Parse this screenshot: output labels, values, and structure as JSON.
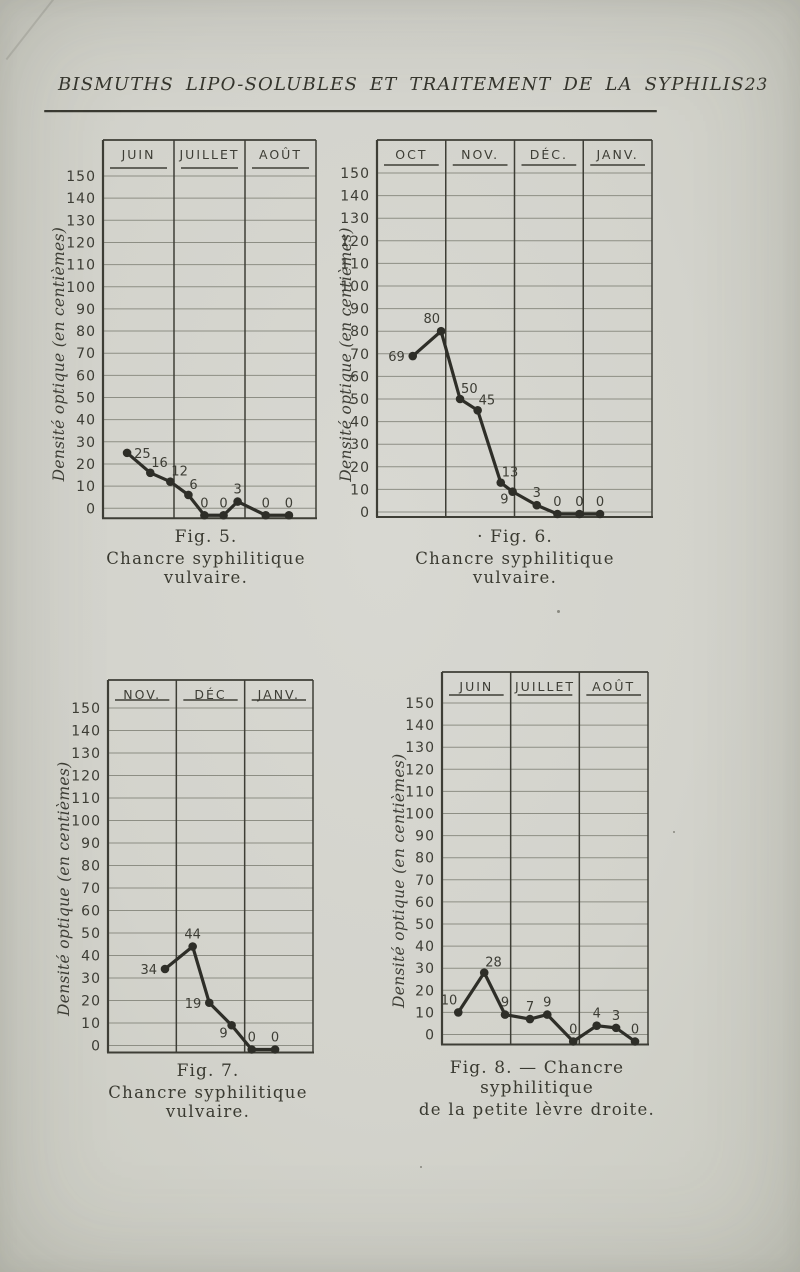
{
  "page_header": {
    "title": "BISMUTHS LIPO-SOLUBLES ET TRAITEMENT DE LA SYPHILIS",
    "page_number": "23"
  },
  "chart_data": [
    {
      "id": "fig-5",
      "type": "line",
      "figure_label": "Fig. 5.",
      "caption_lines": [
        "Fig. 5.",
        "Chancre syphilitique vulvaire."
      ],
      "ylabel": "Densité optique (en centièmes)",
      "categories": [
        "JUIN",
        "JUILLET",
        "AOÛT"
      ],
      "ylim": [
        0,
        150
      ],
      "ytick_step": 10,
      "grid": true,
      "legend": "none",
      "points": [
        {
          "x": 0.113,
          "v": 25,
          "label": "25",
          "pos": "r"
        },
        {
          "x": 0.222,
          "v": 16,
          "label": "16",
          "pos": "ar"
        },
        {
          "x": 0.316,
          "v": 12,
          "label": "12",
          "pos": "ar"
        },
        {
          "x": 0.401,
          "v": 6,
          "label": "6",
          "pos": "ar"
        },
        {
          "x": 0.476,
          "v": 0,
          "label": "0",
          "pos": "a"
        },
        {
          "x": 0.566,
          "v": 0,
          "label": "0",
          "pos": "a"
        },
        {
          "x": 0.632,
          "v": 3,
          "label": "3",
          "pos": "a"
        },
        {
          "x": 0.764,
          "v": 0,
          "label": "0",
          "pos": "a"
        },
        {
          "x": 0.873,
          "v": 0,
          "label": "0",
          "pos": "a"
        }
      ]
    },
    {
      "id": "fig-6",
      "type": "line",
      "figure_label": "Fig. 6.",
      "caption_lines": [
        "· Fig. 6.",
        "Chancre syphilitique vulvaire."
      ],
      "ylabel": "Densité optique (en centièmes)",
      "categories": [
        "OCT",
        "NOV.",
        "DÉC.",
        "JANV."
      ],
      "ylim": [
        0,
        150
      ],
      "ytick_step": 10,
      "grid": true,
      "legend": "none",
      "points": [
        {
          "x": 0.13,
          "v": 69,
          "label": "69",
          "pos": "l"
        },
        {
          "x": 0.233,
          "v": 80,
          "label": "80",
          "pos": "al"
        },
        {
          "x": 0.302,
          "v": 50,
          "label": "50",
          "pos": "ar"
        },
        {
          "x": 0.366,
          "v": 45,
          "label": "45",
          "pos": "ar"
        },
        {
          "x": 0.45,
          "v": 13,
          "label": "13",
          "pos": "ar"
        },
        {
          "x": 0.493,
          "v": 9,
          "label": "9",
          "pos": "bl"
        },
        {
          "x": 0.581,
          "v": 3,
          "label": "3",
          "pos": "a"
        },
        {
          "x": 0.656,
          "v": 0,
          "label": "0",
          "pos": "a"
        },
        {
          "x": 0.736,
          "v": 0,
          "label": "0",
          "pos": "a"
        },
        {
          "x": 0.811,
          "v": 0,
          "label": "0",
          "pos": "a"
        }
      ]
    },
    {
      "id": "fig-7",
      "type": "line",
      "figure_label": "Fig. 7.",
      "caption_lines": [
        "Fig. 7.",
        "Chancre syphilitique vulvaire."
      ],
      "ylabel": "Densité optique (en centièmes)",
      "categories": [
        "NOV.",
        "DÉC",
        "JANV."
      ],
      "ylim": [
        0,
        150
      ],
      "ytick_step": 10,
      "grid": true,
      "legend": "none",
      "points": [
        {
          "x": 0.278,
          "v": 34,
          "label": "34",
          "pos": "l"
        },
        {
          "x": 0.413,
          "v": 44,
          "label": "44",
          "pos": "a"
        },
        {
          "x": 0.494,
          "v": 19,
          "label": "19",
          "pos": "l"
        },
        {
          "x": 0.603,
          "v": 9,
          "label": "9",
          "pos": "bl"
        },
        {
          "x": 0.701,
          "v": 0,
          "label": "0",
          "pos": "a"
        },
        {
          "x": 0.815,
          "v": 0,
          "label": "0",
          "pos": "a"
        }
      ]
    },
    {
      "id": "fig-8",
      "type": "line",
      "figure_label": "Fig. 8.",
      "caption_lines": [
        "Fig. 8. — Chancre syphilitique",
        "de la petite lèvre droite."
      ],
      "ylabel": "Densité optique (en centièmes)",
      "categories": [
        "JUIN",
        "JUILLET",
        "AOÛT"
      ],
      "ylim": [
        0,
        150
      ],
      "ytick_step": 10,
      "grid": true,
      "legend": "none",
      "points": [
        {
          "x": 0.079,
          "v": 10,
          "label": "10",
          "pos": "al"
        },
        {
          "x": 0.205,
          "v": 28,
          "label": "28",
          "pos": "ar"
        },
        {
          "x": 0.306,
          "v": 9,
          "label": "9",
          "pos": "a"
        },
        {
          "x": 0.427,
          "v": 7,
          "label": "7",
          "pos": "a"
        },
        {
          "x": 0.511,
          "v": 9,
          "label": "9",
          "pos": "a"
        },
        {
          "x": 0.637,
          "v": 0,
          "label": "0",
          "pos": "a"
        },
        {
          "x": 0.751,
          "v": 4,
          "label": "4",
          "pos": "a"
        },
        {
          "x": 0.845,
          "v": 3,
          "label": "3",
          "pos": "a"
        },
        {
          "x": 0.937,
          "v": 0,
          "label": "0",
          "pos": "a"
        }
      ]
    }
  ]
}
